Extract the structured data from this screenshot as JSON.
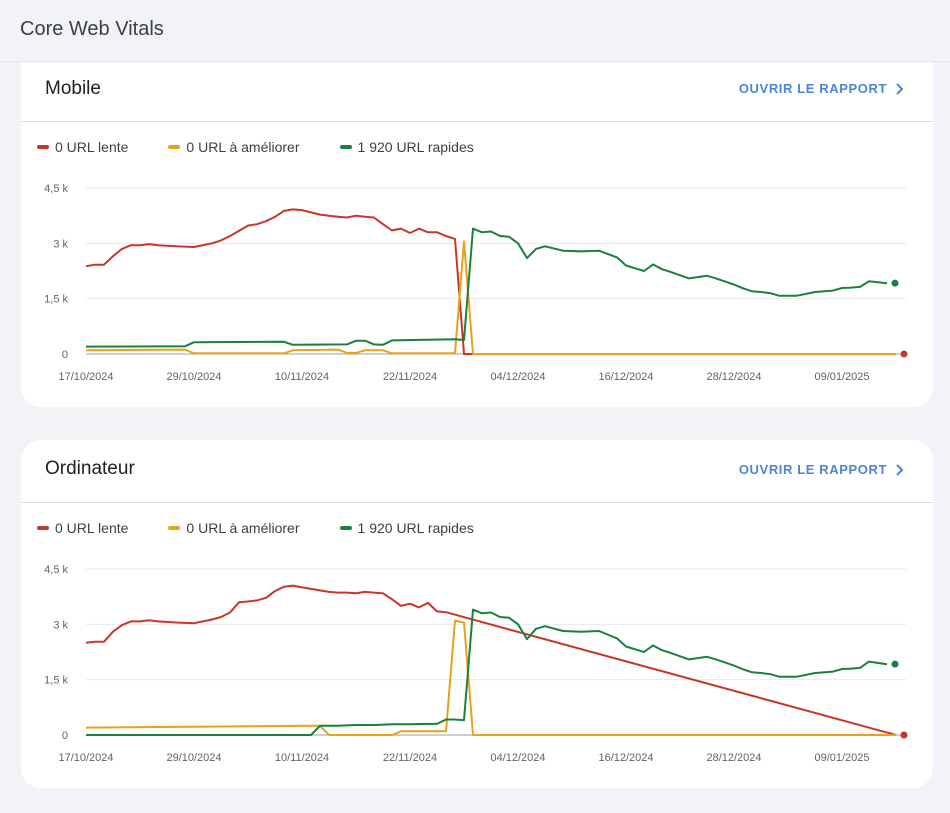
{
  "page": {
    "title": "Core Web Vitals"
  },
  "colors": {
    "slow": "#c5372c",
    "improve": "#e8a21b",
    "fast": "#19803d",
    "link": "#4a86d8"
  },
  "cards": [
    {
      "title": "Mobile",
      "report_label": "OUVRIR LE RAPPORT",
      "legend": [
        "0 URL lente",
        "0 URL à améliorer",
        "1 920 URL rapides"
      ]
    },
    {
      "title": "Ordinateur",
      "report_label": "OUVRIR LE RAPPORT",
      "legend": [
        "0 URL lente",
        "0 URL à améliorer",
        "1 920 URL rapides"
      ]
    }
  ],
  "chart_data": [
    {
      "type": "line",
      "ylim": [
        0,
        4500
      ],
      "yticks": [
        0,
        1500,
        3000,
        4500
      ],
      "ytick_labels": [
        "0",
        "1,5 k",
        "3 k",
        "4,5 k"
      ],
      "x_range": [
        "2024-10-17",
        "2025-01-15"
      ],
      "xtick_labels": [
        "17/10/2024",
        "29/10/2024",
        "10/11/2024",
        "22/11/2024",
        "04/12/2024",
        "16/12/2024",
        "28/12/2024",
        "09/01/2025"
      ],
      "series": [
        {
          "name": "0 URL lente",
          "color_key": "slow",
          "x": [
            "2024-10-17",
            "2024-10-18",
            "2024-10-19",
            "2024-10-20",
            "2024-10-21",
            "2024-10-22",
            "2024-10-23",
            "2024-10-24",
            "2024-10-25",
            "2024-10-27",
            "2024-10-29",
            "2024-10-31",
            "2024-11-01",
            "2024-11-02",
            "2024-11-04",
            "2024-11-05",
            "2024-11-06",
            "2024-11-07",
            "2024-11-08",
            "2024-11-09",
            "2024-11-10",
            "2024-11-12",
            "2024-11-13",
            "2024-11-14",
            "2024-11-15",
            "2024-11-16",
            "2024-11-17",
            "2024-11-18",
            "2024-11-19",
            "2024-11-20",
            "2024-11-21",
            "2024-11-22",
            "2024-11-23",
            "2024-11-24",
            "2024-11-25",
            "2024-11-26",
            "2024-11-27",
            "2024-11-28",
            "2025-01-15"
          ],
          "y": [
            2380,
            2420,
            2420,
            2650,
            2850,
            2950,
            2950,
            2980,
            2950,
            2920,
            2900,
            3000,
            3080,
            3200,
            3480,
            3520,
            3600,
            3720,
            3880,
            3920,
            3900,
            3780,
            3750,
            3720,
            3700,
            3750,
            3720,
            3700,
            3520,
            3350,
            3400,
            3280,
            3400,
            3300,
            3300,
            3200,
            3120,
            0,
            0
          ]
        },
        {
          "name": "0 URL à améliorer",
          "color_key": "improve",
          "x": [
            "2024-10-17",
            "2024-10-28",
            "2024-10-29",
            "2024-11-08",
            "2024-11-09",
            "2024-11-14",
            "2024-11-15",
            "2024-11-16",
            "2024-11-17",
            "2024-11-19",
            "2024-11-20",
            "2024-11-27",
            "2024-11-28",
            "2024-11-29",
            "2025-01-15"
          ],
          "y": [
            100,
            120,
            20,
            20,
            100,
            120,
            30,
            30,
            100,
            100,
            20,
            20,
            3050,
            0,
            0
          ]
        },
        {
          "name": "1 920 URL rapides",
          "color_key": "fast",
          "x": [
            "2024-10-17",
            "2024-10-28",
            "2024-10-29",
            "2024-11-08",
            "2024-11-09",
            "2024-11-15",
            "2024-11-16",
            "2024-11-17",
            "2024-11-18",
            "2024-11-19",
            "2024-11-20",
            "2024-11-27",
            "2024-11-28",
            "2024-11-29",
            "2024-11-30",
            "2024-12-01",
            "2024-12-02",
            "2024-12-03",
            "2024-12-04",
            "2024-12-05",
            "2024-12-06",
            "2024-12-07",
            "2024-12-09",
            "2024-12-11",
            "2024-12-13",
            "2024-12-15",
            "2024-12-16",
            "2024-12-18",
            "2024-12-19",
            "2024-12-20",
            "2024-12-21",
            "2024-12-23",
            "2024-12-25",
            "2024-12-26",
            "2024-12-28",
            "2024-12-29",
            "2024-12-30",
            "2024-12-31",
            "2025-01-01",
            "2025-01-02",
            "2025-01-04",
            "2025-01-06",
            "2025-01-08",
            "2025-01-09",
            "2025-01-10",
            "2025-01-11",
            "2025-01-12",
            "2025-01-14"
          ],
          "y": [
            200,
            210,
            320,
            330,
            250,
            260,
            360,
            360,
            260,
            250,
            370,
            400,
            380,
            3400,
            3300,
            3320,
            3200,
            3180,
            3000,
            2600,
            2850,
            2920,
            2800,
            2780,
            2800,
            2620,
            2400,
            2250,
            2430,
            2300,
            2220,
            2050,
            2120,
            2050,
            1880,
            1780,
            1700,
            1680,
            1650,
            1580,
            1580,
            1680,
            1720,
            1790,
            1800,
            1820,
            1970,
            1920
          ]
        }
      ]
    },
    {
      "type": "line",
      "ylim": [
        0,
        4500
      ],
      "yticks": [
        0,
        1500,
        3000,
        4500
      ],
      "ytick_labels": [
        "0",
        "1,5 k",
        "3 k",
        "4,5 k"
      ],
      "x_range": [
        "2024-10-17",
        "2025-01-15"
      ],
      "xtick_labels": [
        "17/10/2024",
        "29/10/2024",
        "10/11/2024",
        "22/11/2024",
        "04/12/2024",
        "16/12/2024",
        "28/12/2024",
        "09/01/2025"
      ],
      "series": [
        {
          "name": "0 URL lente",
          "color_key": "slow",
          "x": [
            "2024-10-17",
            "2024-10-18",
            "2024-10-19",
            "2024-10-20",
            "2024-10-21",
            "2024-10-22",
            "2024-10-23",
            "2024-10-24",
            "2024-10-25",
            "2024-10-27",
            "2024-10-29",
            "2024-10-31",
            "2024-11-01",
            "2024-11-02",
            "2024-11-03",
            "2024-11-04",
            "2024-11-05",
            "2024-11-06",
            "2024-11-07",
            "2024-11-08",
            "2024-11-09",
            "2024-11-10",
            "2024-11-12",
            "2024-11-13",
            "2024-11-14",
            "2024-11-15",
            "2024-11-16",
            "2024-11-17",
            "2024-11-18",
            "2024-11-19",
            "2024-11-20",
            "2024-11-21",
            "2024-11-22",
            "2024-11-23",
            "2024-11-24",
            "2024-11-25",
            "2024-11-26",
            "2024-11-27",
            "2025-01-15"
          ],
          "y": [
            2500,
            2530,
            2530,
            2800,
            2980,
            3080,
            3080,
            3110,
            3080,
            3050,
            3030,
            3130,
            3200,
            3320,
            3600,
            3620,
            3650,
            3720,
            3900,
            4020,
            4050,
            4000,
            3920,
            3880,
            3860,
            3860,
            3840,
            3880,
            3860,
            3840,
            3680,
            3500,
            3560,
            3460,
            3580,
            3350,
            3330,
            3260,
            0
          ]
        },
        {
          "name": "0 URL à améliorer",
          "color_key": "improve",
          "x": [
            "2024-10-17",
            "2024-11-11",
            "2024-11-12",
            "2024-11-13",
            "2024-11-20",
            "2024-11-21",
            "2024-11-22",
            "2024-11-26",
            "2024-11-27",
            "2024-11-28",
            "2024-11-29",
            "2025-01-15"
          ],
          "y": [
            200,
            250,
            250,
            0,
            0,
            100,
            100,
            100,
            3100,
            3050,
            0,
            0
          ]
        },
        {
          "name": "1 920 URL rapides",
          "color_key": "fast",
          "x": [
            "2024-10-17",
            "2024-11-11",
            "2024-11-12",
            "2024-11-14",
            "2024-11-16",
            "2024-11-18",
            "2024-11-20",
            "2024-11-22",
            "2024-11-24",
            "2024-11-25",
            "2024-11-26",
            "2024-11-27",
            "2024-11-28",
            "2024-11-29",
            "2024-11-30",
            "2024-12-01",
            "2024-12-02",
            "2024-12-03",
            "2024-12-04",
            "2024-12-05",
            "2024-12-06",
            "2024-12-07",
            "2024-12-09",
            "2024-12-11",
            "2024-12-13",
            "2024-12-15",
            "2024-12-16",
            "2024-12-18",
            "2024-12-19",
            "2024-12-20",
            "2024-12-21",
            "2024-12-23",
            "2024-12-25",
            "2024-12-26",
            "2024-12-28",
            "2024-12-29",
            "2024-12-30",
            "2024-12-31",
            "2025-01-01",
            "2025-01-02",
            "2025-01-04",
            "2025-01-06",
            "2025-01-08",
            "2025-01-09",
            "2025-01-10",
            "2025-01-11",
            "2025-01-12",
            "2025-01-14"
          ],
          "y": [
            0,
            0,
            250,
            250,
            270,
            270,
            290,
            290,
            300,
            300,
            420,
            420,
            400,
            3400,
            3300,
            3320,
            3200,
            3180,
            3000,
            2600,
            2880,
            2950,
            2820,
            2800,
            2820,
            2620,
            2400,
            2250,
            2430,
            2300,
            2220,
            2050,
            2120,
            2050,
            1880,
            1780,
            1700,
            1680,
            1650,
            1580,
            1580,
            1680,
            1720,
            1790,
            1800,
            1820,
            1990,
            1920
          ]
        }
      ]
    }
  ]
}
